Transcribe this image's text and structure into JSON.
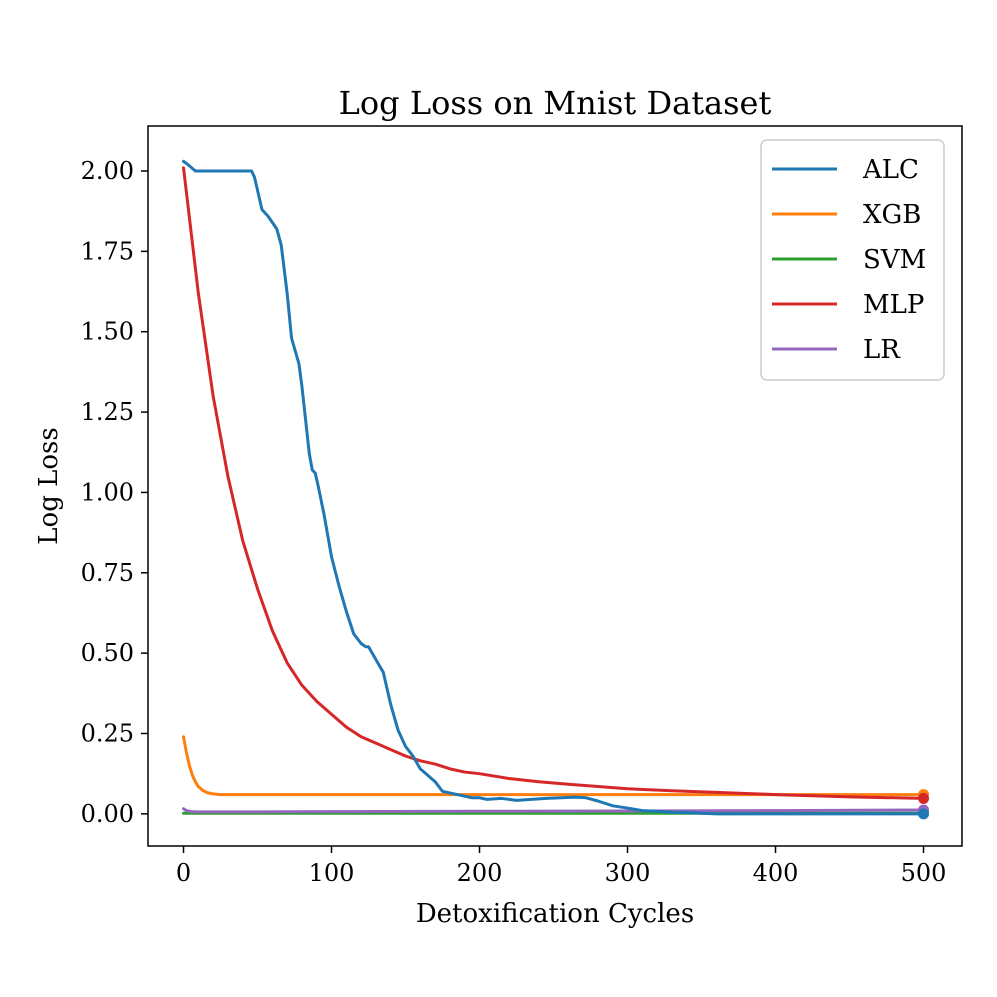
{
  "chart_data": {
    "type": "line",
    "title": "Log Loss on Mnist Dataset",
    "xlabel": "Detoxification Cycles",
    "ylabel": "Log Loss",
    "xlim": [
      -24,
      526
    ],
    "ylim": [
      -0.1,
      2.14
    ],
    "xticks": [
      0,
      100,
      200,
      300,
      400,
      500
    ],
    "yticks": [
      0.0,
      0.25,
      0.5,
      0.75,
      1.0,
      1.25,
      1.5,
      1.75,
      2.0
    ],
    "xtick_labels": [
      "0",
      "100",
      "200",
      "300",
      "400",
      "500"
    ],
    "ytick_labels": [
      "0.00",
      "0.25",
      "0.50",
      "0.75",
      "1.00",
      "1.25",
      "1.50",
      "1.75",
      "2.00"
    ],
    "grid": false,
    "legend_position": "top-right",
    "series": [
      {
        "name": "ALC",
        "color": "#1f77b4",
        "x": [
          0,
          3,
          8,
          20,
          30,
          40,
          46,
          48,
          53,
          57,
          63,
          66,
          70,
          73,
          78,
          80,
          85,
          87,
          89,
          91,
          95,
          100,
          105,
          110,
          115,
          120,
          123,
          125,
          130,
          135,
          140,
          145,
          150,
          155,
          160,
          165,
          170,
          175,
          180,
          185,
          195,
          200,
          205,
          215,
          225,
          235,
          245,
          255,
          265,
          272,
          280,
          290,
          300,
          310,
          320,
          330,
          340,
          350,
          360,
          400,
          450,
          500
        ],
        "values": [
          2.03,
          2.02,
          2.0,
          2.0,
          2.0,
          2.0,
          2.0,
          1.98,
          1.88,
          1.86,
          1.82,
          1.77,
          1.62,
          1.48,
          1.4,
          1.33,
          1.12,
          1.07,
          1.06,
          1.02,
          0.93,
          0.8,
          0.71,
          0.63,
          0.56,
          0.53,
          0.52,
          0.52,
          0.48,
          0.44,
          0.34,
          0.26,
          0.21,
          0.18,
          0.14,
          0.12,
          0.1,
          0.07,
          0.065,
          0.06,
          0.05,
          0.05,
          0.045,
          0.048,
          0.042,
          0.045,
          0.048,
          0.05,
          0.052,
          0.05,
          0.04,
          0.025,
          0.018,
          0.01,
          0.008,
          0.005,
          0.004,
          0.002,
          0.0,
          0.0,
          0.0,
          0.0
        ]
      },
      {
        "name": "XGB",
        "color": "#ff7f0e",
        "x": [
          0,
          2,
          4,
          6,
          8,
          10,
          13,
          16,
          20,
          25,
          30,
          50,
          100,
          200,
          300,
          400,
          500
        ],
        "values": [
          0.24,
          0.19,
          0.15,
          0.12,
          0.1,
          0.085,
          0.073,
          0.066,
          0.062,
          0.06,
          0.06,
          0.06,
          0.06,
          0.06,
          0.06,
          0.06,
          0.06
        ]
      },
      {
        "name": "SVM",
        "color": "#2ca02c",
        "x": [
          0,
          50,
          100,
          200,
          300,
          400,
          500
        ],
        "values": [
          0.002,
          0.002,
          0.002,
          0.002,
          0.002,
          0.002,
          0.002
        ]
      },
      {
        "name": "MLP",
        "color": "#d62728",
        "x": [
          0,
          10,
          20,
          30,
          40,
          50,
          60,
          70,
          80,
          90,
          100,
          110,
          120,
          130,
          140,
          150,
          160,
          170,
          180,
          190,
          200,
          220,
          240,
          260,
          280,
          300,
          330,
          360,
          400,
          450,
          500
        ],
        "values": [
          2.01,
          1.62,
          1.3,
          1.05,
          0.85,
          0.7,
          0.57,
          0.47,
          0.4,
          0.35,
          0.31,
          0.27,
          0.24,
          0.22,
          0.2,
          0.18,
          0.165,
          0.155,
          0.14,
          0.13,
          0.125,
          0.11,
          0.1,
          0.092,
          0.085,
          0.078,
          0.072,
          0.067,
          0.06,
          0.053,
          0.048
        ]
      },
      {
        "name": "LR",
        "color": "#9467bd",
        "x": [
          0,
          2,
          5,
          10,
          30,
          100,
          200,
          300,
          400,
          500
        ],
        "values": [
          0.016,
          0.01,
          0.007,
          0.006,
          0.006,
          0.007,
          0.008,
          0.009,
          0.01,
          0.012
        ]
      }
    ]
  }
}
